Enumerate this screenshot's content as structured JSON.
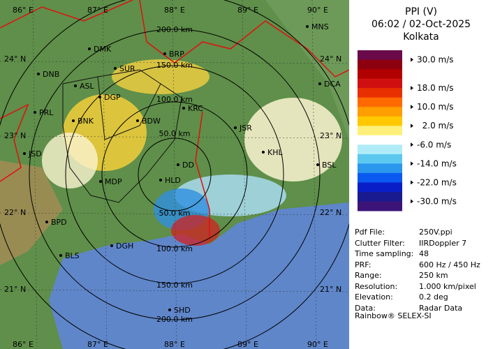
{
  "header": {
    "title": "PPI (V)",
    "time": "06:02 / 02-Oct-2025",
    "site": "Kolkata"
  },
  "scale": {
    "labels": [
      "30.0 m/s",
      "18.0 m/s",
      "10.0 m/s",
      "  2.0 m/s",
      "-6.0 m/s",
      "-14.0 m/s",
      "-22.0 m/s",
      "-30.0 m/s"
    ]
  },
  "info": [
    [
      "Pdf File:",
      "250V.ppi"
    ],
    [
      "Clutter Filter:",
      "IIRDoppler 7"
    ],
    [
      "Time sampling:",
      "48"
    ],
    [
      "PRF:",
      "600 Hz / 450 Hz"
    ],
    [
      "Range:",
      "250 km"
    ],
    [
      "Resolution:",
      "1.000 km/pixel"
    ],
    [
      "Elevation:",
      "0.2 deg"
    ],
    [
      "Data:",
      "Radar Data"
    ]
  ],
  "footer": "Rainbow® SELEX-SI",
  "map": {
    "lon_labels": [
      "86° E",
      "87° E",
      "88° E",
      "89° E",
      "90° E"
    ],
    "lat_labels": [
      "24° N",
      "23° N",
      "22° N",
      "21° N"
    ],
    "range_labels": [
      "200.0 km",
      "150.0 km",
      "100.0 km",
      "50.0 km",
      "50.0 km",
      "100.0 km",
      "150.0 km",
      "200.0 km"
    ],
    "cities": [
      "MNS",
      "DMK",
      "BRP",
      "SUR",
      "DNB",
      "ASL",
      "DGP",
      "DCA",
      "KRC",
      "PRL",
      "BNK",
      "BDW",
      "JSR",
      "KHL",
      "JSD",
      "BSL",
      "DD",
      "MDP",
      "HLD",
      "BPD",
      "DGH",
      "BLS",
      "SHD"
    ]
  }
}
